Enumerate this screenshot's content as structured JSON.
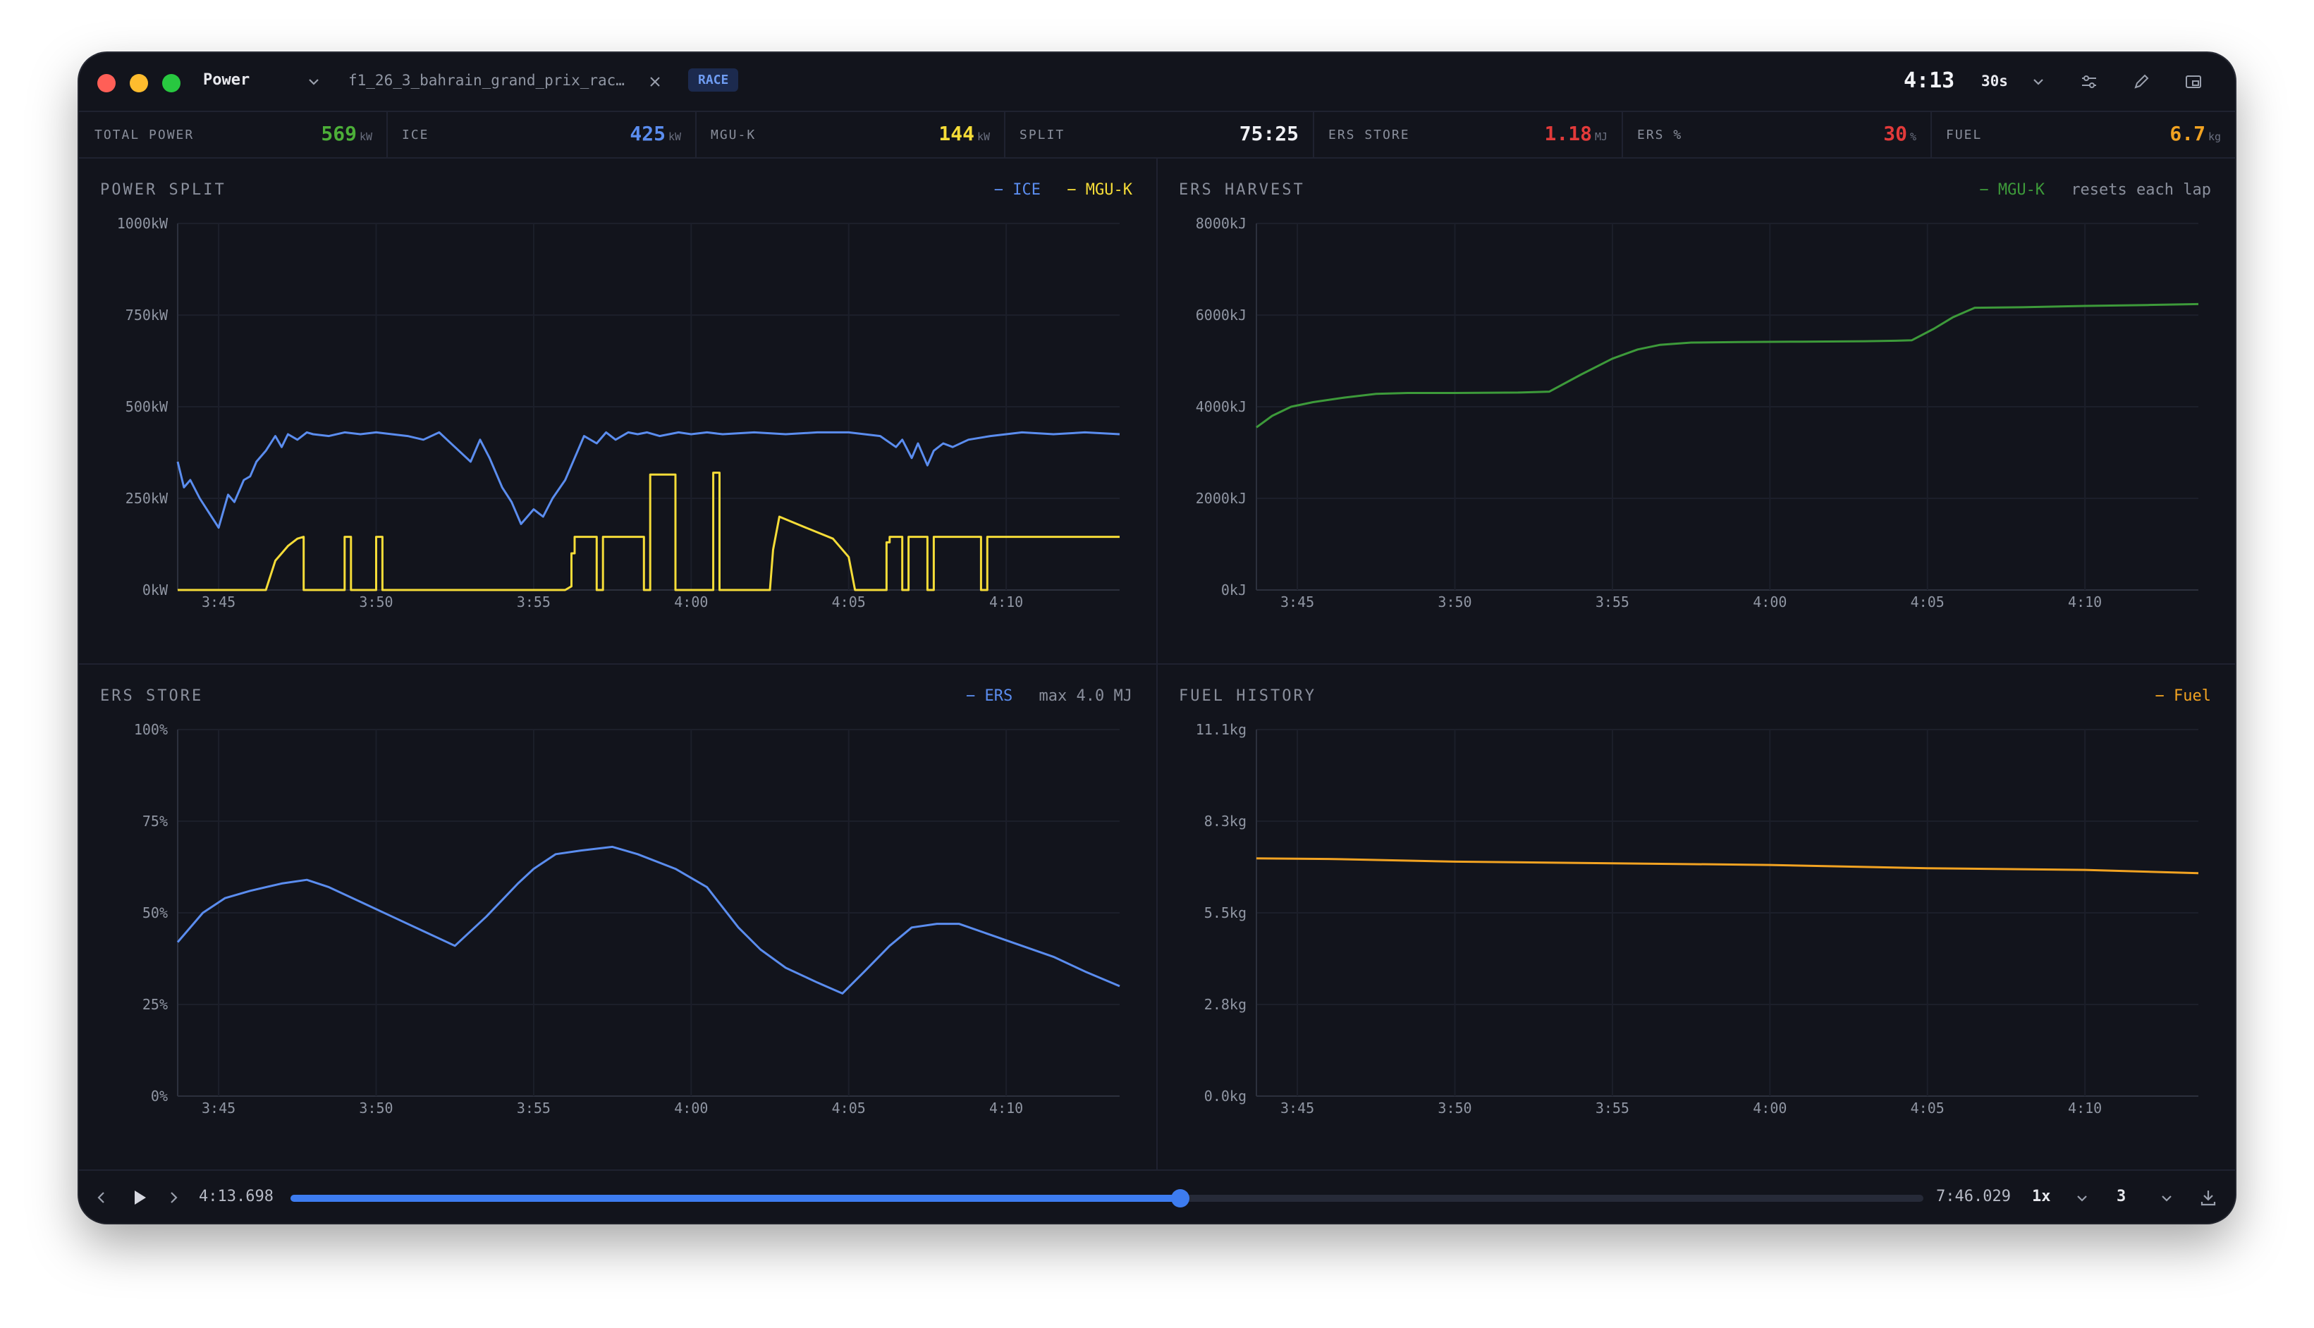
{
  "window": {
    "panel_name": "Power",
    "file_tab": "f1_26_3_bahrain_grand_prix_rac…",
    "session_badge": "RACE",
    "clock": "4:13",
    "window_select": "30s"
  },
  "stats": [
    {
      "label": "TOTAL POWER",
      "value": "569",
      "unit": "kW",
      "color": "#4caf38"
    },
    {
      "label": "ICE",
      "value": "425",
      "unit": "kW",
      "color": "#5b8def"
    },
    {
      "label": "MGU-K",
      "value": "144",
      "unit": "kW",
      "color": "#f5dc38"
    },
    {
      "label": "SPLIT",
      "value": "75:25",
      "unit": "",
      "color": "#f0f1f5"
    },
    {
      "label": "ERS STORE",
      "value": "1.18",
      "unit": "MJ",
      "color": "#e23a3a"
    },
    {
      "label": "ERS %",
      "value": "30",
      "unit": "%",
      "color": "#e23a3a"
    },
    {
      "label": "FUEL",
      "value": "6.7",
      "unit": "kg",
      "color": "#f2a322"
    }
  ],
  "panels": {
    "power_split": {
      "title": "POWER SPLIT",
      "legend": [
        {
          "label": "ICE",
          "color": "#5b8def"
        },
        {
          "label": "MGU-K",
          "color": "#f5dc38"
        }
      ],
      "note": ""
    },
    "ers_harvest": {
      "title": "ERS HARVEST",
      "legend": [
        {
          "label": "MGU-K",
          "color": "#3d9a3a"
        }
      ],
      "note": "resets each lap"
    },
    "ers_store": {
      "title": "ERS STORE",
      "legend": [
        {
          "label": "ERS",
          "color": "#5b8def"
        }
      ],
      "note": "max 4.0 MJ"
    },
    "fuel_history": {
      "title": "FUEL HISTORY",
      "legend": [
        {
          "label": "Fuel",
          "color": "#f2a322"
        }
      ],
      "note": ""
    }
  },
  "playback": {
    "current_time": "4:13.698",
    "total_time": "7:46.029",
    "speed": "1x",
    "lap": "3",
    "progress": 0.545
  },
  "chart_data": [
    {
      "type": "line",
      "title": "POWER SPLIT",
      "xlabel": "",
      "ylabel": "",
      "x_ticks": [
        "3:45",
        "3:50",
        "3:55",
        "4:00",
        "4:05",
        "4:10"
      ],
      "y_ticks": [
        "0kW",
        "250kW",
        "500kW",
        "750kW",
        "1000kW"
      ],
      "xlim": [
        223.7,
        253.6
      ],
      "ylim": [
        0,
        1000
      ],
      "grid": true,
      "legend_position": "top-right",
      "series": [
        {
          "name": "ICE",
          "color": "#5b8def",
          "x": [
            223.7,
            223.9,
            224.1,
            224.4,
            224.7,
            225.0,
            225.3,
            225.5,
            225.8,
            226.0,
            226.2,
            226.5,
            226.8,
            227.0,
            227.2,
            227.5,
            227.8,
            228.0,
            228.5,
            229.0,
            229.5,
            230.0,
            230.5,
            231.0,
            231.5,
            232.0,
            232.5,
            233.0,
            233.3,
            233.6,
            234.0,
            234.3,
            234.6,
            235.0,
            235.3,
            235.6,
            236.0,
            236.3,
            236.6,
            237.0,
            237.3,
            237.6,
            238.0,
            238.3,
            238.6,
            239.0,
            239.3,
            239.6,
            240.0,
            240.5,
            241.0,
            242.0,
            243.0,
            244.0,
            245.0,
            246.0,
            246.5,
            246.7,
            247.0,
            247.2,
            247.5,
            247.7,
            248.0,
            248.3,
            248.8,
            249.5,
            250.5,
            251.5,
            252.5,
            253.6
          ],
          "y": [
            350,
            280,
            300,
            250,
            210,
            170,
            260,
            240,
            300,
            310,
            350,
            380,
            420,
            390,
            425,
            410,
            430,
            425,
            420,
            430,
            425,
            430,
            425,
            420,
            410,
            430,
            390,
            350,
            410,
            360,
            280,
            240,
            180,
            220,
            200,
            250,
            300,
            360,
            420,
            400,
            430,
            410,
            430,
            425,
            430,
            420,
            425,
            430,
            425,
            430,
            425,
            430,
            425,
            430,
            430,
            420,
            390,
            410,
            360,
            400,
            340,
            380,
            400,
            390,
            410,
            420,
            430,
            425,
            430,
            425
          ]
        },
        {
          "name": "MGU-K",
          "color": "#f5dc38",
          "x": [
            223.7,
            226.5,
            226.8,
            227.0,
            227.2,
            227.5,
            227.7,
            227.7,
            229.0,
            229.0,
            229.2,
            229.2,
            230.0,
            230.0,
            230.2,
            230.2,
            232.5,
            232.5,
            236.0,
            236.2,
            236.2,
            236.3,
            236.3,
            237.0,
            237.0,
            237.2,
            237.2,
            238.5,
            238.5,
            238.7,
            238.7,
            239.5,
            239.5,
            240.7,
            240.7,
            240.9,
            240.9,
            242.5,
            242.6,
            242.6,
            242.8,
            243.5,
            244.5,
            245.0,
            245.2,
            245.5,
            245.5,
            246.0,
            246.0,
            246.2,
            246.2,
            246.3,
            246.3,
            246.7,
            246.7,
            246.9,
            246.9,
            247.5,
            247.5,
            247.7,
            247.7,
            248.5,
            249.0,
            249.2,
            249.2,
            249.4,
            249.4,
            253.6
          ],
          "y": [
            0,
            0,
            80,
            100,
            120,
            140,
            145,
            0,
            0,
            145,
            145,
            0,
            0,
            145,
            145,
            0,
            0,
            0,
            0,
            10,
            100,
            100,
            145,
            145,
            0,
            0,
            145,
            145,
            0,
            0,
            315,
            315,
            0,
            0,
            320,
            320,
            0,
            0,
            110,
            110,
            200,
            175,
            140,
            90,
            0,
            0,
            0,
            0,
            0,
            0,
            130,
            130,
            145,
            145,
            0,
            0,
            145,
            145,
            0,
            0,
            145,
            145,
            145,
            145,
            0,
            0,
            145,
            145
          ]
        }
      ]
    },
    {
      "type": "line",
      "title": "ERS HARVEST",
      "note": "resets each lap",
      "x_ticks": [
        "3:45",
        "3:50",
        "3:55",
        "4:00",
        "4:05",
        "4:10"
      ],
      "y_ticks": [
        "0kJ",
        "2000kJ",
        "4000kJ",
        "6000kJ",
        "8000kJ"
      ],
      "xlim": [
        223.7,
        253.6
      ],
      "ylim": [
        0,
        8000
      ],
      "grid": true,
      "series": [
        {
          "name": "MGU-K",
          "color": "#3d9a3a",
          "x": [
            223.7,
            224.2,
            224.8,
            225.5,
            226.5,
            227.5,
            228.5,
            230.0,
            232.0,
            233.0,
            234.0,
            235.0,
            235.8,
            236.5,
            237.5,
            239.0,
            241.0,
            243.0,
            244.0,
            244.5,
            245.2,
            245.8,
            246.5,
            248.0,
            250.0,
            252.0,
            253.6
          ],
          "y": [
            3550,
            3800,
            4000,
            4100,
            4200,
            4280,
            4300,
            4300,
            4310,
            4330,
            4700,
            5050,
            5250,
            5350,
            5400,
            5410,
            5420,
            5430,
            5440,
            5450,
            5700,
            5950,
            6160,
            6170,
            6200,
            6220,
            6240
          ]
        }
      ]
    },
    {
      "type": "line",
      "title": "ERS STORE",
      "note": "max 4.0 MJ",
      "x_ticks": [
        "3:45",
        "3:50",
        "3:55",
        "4:00",
        "4:05",
        "4:10"
      ],
      "y_ticks": [
        "0%",
        "25%",
        "50%",
        "75%",
        "100%"
      ],
      "xlim": [
        223.7,
        253.6
      ],
      "ylim": [
        0,
        100
      ],
      "grid": true,
      "series": [
        {
          "name": "ERS",
          "color": "#5b8def",
          "x": [
            223.7,
            224.5,
            225.2,
            226.0,
            227.0,
            227.8,
            228.5,
            229.5,
            230.5,
            231.5,
            232.5,
            233.5,
            234.5,
            235.0,
            235.7,
            236.5,
            237.5,
            238.3,
            239.5,
            240.5,
            241.5,
            242.2,
            243.0,
            244.0,
            244.8,
            245.5,
            246.3,
            247.0,
            247.8,
            248.5,
            249.5,
            250.5,
            251.5,
            252.5,
            253.6
          ],
          "y": [
            42,
            50,
            54,
            56,
            58,
            59,
            57,
            53,
            49,
            45,
            41,
            49,
            58,
            62,
            66,
            67,
            68,
            66,
            62,
            57,
            46,
            40,
            35,
            31,
            28,
            34,
            41,
            46,
            47,
            47,
            44,
            41,
            38,
            34,
            30
          ]
        }
      ]
    },
    {
      "type": "line",
      "title": "FUEL HISTORY",
      "x_ticks": [
        "3:45",
        "3:50",
        "3:55",
        "4:00",
        "4:05",
        "4:10"
      ],
      "y_ticks": [
        "0.0kg",
        "2.8kg",
        "5.5kg",
        "8.3kg",
        "11.1kg"
      ],
      "xlim": [
        223.7,
        253.6
      ],
      "ylim": [
        0,
        11.1
      ],
      "grid": true,
      "series": [
        {
          "name": "Fuel",
          "color": "#f2a322",
          "x": [
            223.7,
            226.0,
            230.0,
            235.0,
            240.0,
            245.0,
            250.0,
            253.6
          ],
          "y": [
            7.2,
            7.18,
            7.1,
            7.05,
            7.0,
            6.9,
            6.85,
            6.75
          ]
        }
      ]
    }
  ]
}
